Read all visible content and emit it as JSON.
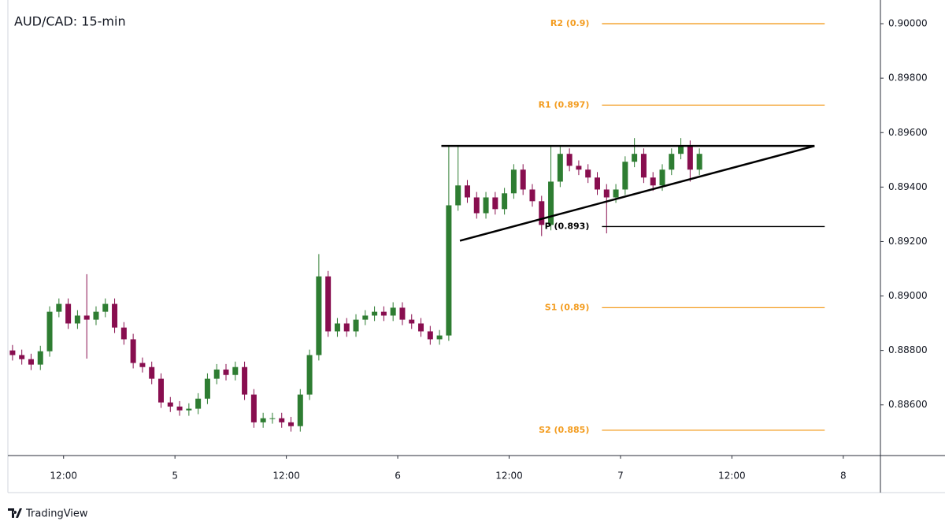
{
  "chart_data": {
    "type": "candlestick",
    "title": "AUD/CAD: 15-min",
    "watermark": "TradingView",
    "up_color": "#2e7d32",
    "down_color": "#880e4f",
    "x": [
      6.5,
      7.5,
      8.5,
      9.5,
      10.5,
      11.5,
      12.5,
      13.5,
      14.5,
      15.5,
      16.5,
      17.5,
      18.5,
      19.5,
      20.5,
      21.5,
      22.5,
      23.5,
      24.5,
      25.5,
      26.5,
      27.5,
      28.5,
      29.5,
      30.5,
      31.5,
      32.5,
      33.5,
      34.5,
      35.5,
      36.5,
      37.5,
      38.5,
      39.5,
      40.5,
      41.5,
      42.5,
      43.5,
      44.5,
      45.5,
      46.5,
      47.5,
      48.5,
      49.5,
      50.5,
      51.5,
      52.5,
      53.5,
      54.5,
      55.5,
      56.5,
      57.5,
      58.5,
      59.5,
      60.5,
      61.5,
      62.5,
      63.5,
      64.5,
      65.5,
      66.5,
      67.5,
      68.5,
      69.5,
      70.5,
      71.5,
      72.5,
      73.5,
      74.5,
      75.5,
      76.5,
      77.5,
      78.5,
      79.5,
      80.5
    ],
    "open": [
      0.888,
      0.88783,
      0.88768,
      0.88748,
      0.88797,
      0.88942,
      0.88971,
      0.88899,
      0.88928,
      0.88913,
      0.88942,
      0.88971,
      0.88884,
      0.88841,
      0.88754,
      0.88739,
      0.88696,
      0.88609,
      0.88594,
      0.8858,
      0.88586,
      0.88623,
      0.88696,
      0.8873,
      0.8871,
      0.88739,
      0.88638,
      0.88536,
      0.88551,
      0.88551,
      0.88536,
      0.88522,
      0.88638,
      0.88783,
      0.89072,
      0.8887,
      0.88899,
      0.8887,
      0.88913,
      0.88928,
      0.88942,
      0.88928,
      0.88957,
      0.88913,
      0.88899,
      0.8887,
      0.88841,
      0.88855,
      0.89333,
      0.89406,
      0.89362,
      0.89304,
      0.89362,
      0.89319,
      0.89377,
      0.89464,
      0.89391,
      0.89348,
      0.89261,
      0.8942,
      0.89522,
      0.89478,
      0.89464,
      0.89435,
      0.89391,
      0.89362,
      0.89391,
      0.89493,
      0.89522,
      0.89435,
      0.89406,
      0.89464,
      0.89522,
      0.89551,
      0.89464
    ],
    "high": [
      0.8882,
      0.88803,
      0.88788,
      0.88817,
      0.88962,
      0.88991,
      0.88991,
      0.88948,
      0.8908,
      0.88962,
      0.88991,
      0.88991,
      0.88904,
      0.88861,
      0.88774,
      0.88759,
      0.88716,
      0.88629,
      0.88614,
      0.88606,
      0.88643,
      0.88716,
      0.8875,
      0.8875,
      0.88759,
      0.88759,
      0.88658,
      0.88571,
      0.88571,
      0.88571,
      0.88556,
      0.88658,
      0.88803,
      0.89154,
      0.89092,
      0.88919,
      0.88919,
      0.88933,
      0.88948,
      0.88962,
      0.88962,
      0.88977,
      0.88977,
      0.88933,
      0.88919,
      0.8889,
      0.88875,
      0.89551,
      0.89551,
      0.89426,
      0.89382,
      0.89382,
      0.89382,
      0.89397,
      0.89484,
      0.89484,
      0.89411,
      0.89368,
      0.89551,
      0.89548,
      0.89542,
      0.89498,
      0.89484,
      0.89455,
      0.89411,
      0.89411,
      0.89513,
      0.8958,
      0.89542,
      0.89455,
      0.89484,
      0.89542,
      0.8958,
      0.89571,
      0.89542
    ],
    "low": [
      0.88763,
      0.88748,
      0.88728,
      0.88728,
      0.88777,
      0.88922,
      0.88879,
      0.88879,
      0.8877,
      0.88893,
      0.88922,
      0.88864,
      0.88821,
      0.88734,
      0.88719,
      0.88676,
      0.88589,
      0.88574,
      0.8856,
      0.8856,
      0.88566,
      0.88603,
      0.88676,
      0.8869,
      0.8869,
      0.88618,
      0.88516,
      0.88516,
      0.88531,
      0.88516,
      0.88502,
      0.88502,
      0.88618,
      0.88763,
      0.8885,
      0.8885,
      0.8885,
      0.8885,
      0.88893,
      0.88908,
      0.88908,
      0.88908,
      0.88893,
      0.88879,
      0.8885,
      0.88821,
      0.88821,
      0.88835,
      0.89313,
      0.89342,
      0.89284,
      0.89284,
      0.89299,
      0.89299,
      0.89357,
      0.89371,
      0.89328,
      0.8922,
      0.89241,
      0.894,
      0.89458,
      0.89444,
      0.89415,
      0.89371,
      0.8923,
      0.89342,
      0.89371,
      0.89473,
      0.89415,
      0.89386,
      0.89386,
      0.89444,
      0.89502,
      0.8942,
      0.89444
    ],
    "close": [
      0.88783,
      0.88768,
      0.88748,
      0.88797,
      0.88942,
      0.88971,
      0.88899,
      0.88928,
      0.88913,
      0.88942,
      0.88971,
      0.88884,
      0.88841,
      0.88754,
      0.88739,
      0.88696,
      0.88609,
      0.88594,
      0.8858,
      0.88586,
      0.88623,
      0.88696,
      0.8873,
      0.8871,
      0.88739,
      0.88638,
      0.88536,
      0.88551,
      0.88551,
      0.88536,
      0.88522,
      0.88638,
      0.88783,
      0.89072,
      0.8887,
      0.88899,
      0.8887,
      0.88913,
      0.88928,
      0.88942,
      0.88928,
      0.88957,
      0.88913,
      0.88899,
      0.8887,
      0.88841,
      0.88855,
      0.89333,
      0.89406,
      0.89362,
      0.89304,
      0.89362,
      0.89319,
      0.89377,
      0.89464,
      0.89391,
      0.89348,
      0.89261,
      0.8942,
      0.89522,
      0.89478,
      0.89464,
      0.89435,
      0.89391,
      0.89362,
      0.89391,
      0.89493,
      0.89522,
      0.89435,
      0.89406,
      0.89464,
      0.89522,
      0.89551,
      0.89464,
      0.89522
    ],
    "xlim": [
      6,
      100
    ],
    "xticks": [
      {
        "value": 12,
        "label": "12:00"
      },
      {
        "value": 24,
        "label": "5"
      },
      {
        "value": 36,
        "label": "12:00"
      },
      {
        "value": 48,
        "label": "6"
      },
      {
        "value": 60,
        "label": "12:00"
      },
      {
        "value": 72,
        "label": "7"
      },
      {
        "value": 84,
        "label": "12:00"
      },
      {
        "value": 96,
        "label": "8"
      }
    ],
    "ylim": [
      0.88414,
      0.90087
    ],
    "yticks": [
      {
        "value": 0.9,
        "label": "0.90000"
      },
      {
        "value": 0.898,
        "label": "0.89800"
      },
      {
        "value": 0.896,
        "label": "0.89600"
      },
      {
        "value": 0.894,
        "label": "0.89400"
      },
      {
        "value": 0.892,
        "label": "0.89200"
      },
      {
        "value": 0.89,
        "label": "0.89000"
      },
      {
        "value": 0.888,
        "label": "0.88800"
      },
      {
        "value": 0.886,
        "label": "0.88600"
      }
    ],
    "levels_x": [
      70,
      94
    ],
    "levels": [
      {
        "label": "R2 (0.9)",
        "value": 0.9,
        "color": "#f39c1f"
      },
      {
        "label": "R1 (0.897)",
        "value": 0.89701,
        "color": "#f39c1f"
      },
      {
        "label": "P (0.893)",
        "value": 0.89255,
        "color": "#000000"
      },
      {
        "label": "S1 (0.89)",
        "value": 0.88957,
        "color": "#f39c1f"
      },
      {
        "label": "S2 (0.885)",
        "value": 0.88507,
        "color": "#f39c1f"
      }
    ],
    "trendlines": [
      {
        "x": [
          52.7,
          92.9
        ],
        "y": [
          0.89551,
          0.89551
        ]
      },
      {
        "x": [
          54.7,
          92.9
        ],
        "y": [
          0.89203,
          0.89551
        ]
      }
    ]
  }
}
